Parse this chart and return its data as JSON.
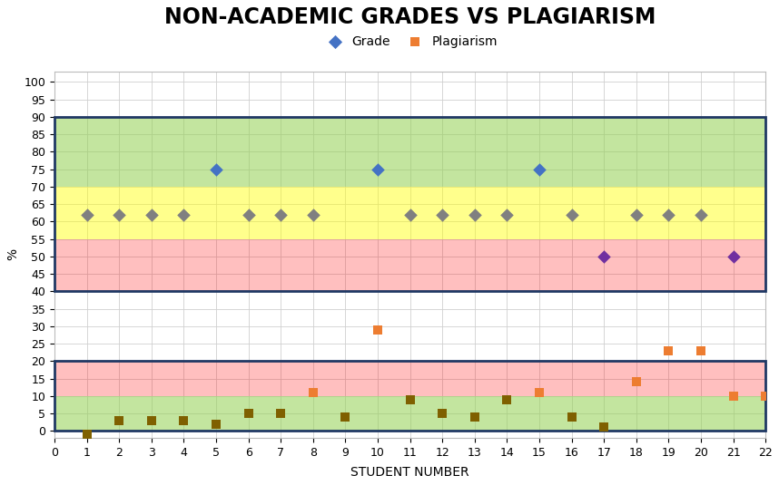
{
  "title": "NON-ACADEMIC GRADES VS PLAGIARISM",
  "xlabel": "STUDENT NUMBER",
  "ylabel": "%",
  "grade_x": [
    1,
    2,
    3,
    4,
    5,
    6,
    7,
    8,
    10,
    11,
    12,
    13,
    14,
    15,
    16,
    17,
    18,
    19,
    20,
    21
  ],
  "grade_y": [
    62,
    62,
    62,
    62,
    75,
    62,
    62,
    62,
    75,
    62,
    62,
    62,
    62,
    75,
    62,
    50,
    62,
    62,
    62,
    50
  ],
  "plagiarism_x": [
    1,
    2,
    3,
    4,
    5,
    6,
    7,
    8,
    9,
    10,
    11,
    12,
    13,
    14,
    15,
    16,
    17,
    18,
    19,
    20,
    21,
    22
  ],
  "plagiarism_y": [
    -1,
    3,
    3,
    3,
    2,
    5,
    5,
    11,
    4,
    29,
    9,
    5,
    4,
    9,
    11,
    4,
    1,
    14,
    23,
    23,
    10,
    10
  ],
  "grade_color_high": "#4472C4",
  "grade_color_mid": "#808080",
  "grade_color_low": "#7030A0",
  "plagiarism_color_high": "#ED7D31",
  "plagiarism_color_low": "#7F6000",
  "zone_green_color": "#92D050",
  "zone_green_alpha": 0.55,
  "zone_yellow_color": "#FFFF00",
  "zone_yellow_alpha": 0.45,
  "zone_red_color": "#FF0000",
  "zone_red_alpha": 0.25,
  "border_color": "#1F3864",
  "border_lw": 2.0,
  "xlim": [
    0,
    22
  ],
  "ylim": [
    -2,
    103
  ],
  "yticks": [
    0,
    5,
    10,
    15,
    20,
    25,
    30,
    35,
    40,
    45,
    50,
    55,
    60,
    65,
    70,
    75,
    80,
    85,
    90,
    95,
    100
  ],
  "xticks": [
    0,
    1,
    2,
    3,
    4,
    5,
    6,
    7,
    8,
    9,
    10,
    11,
    12,
    13,
    14,
    15,
    16,
    17,
    18,
    19,
    20,
    21,
    22
  ],
  "grid_color": "#D0D0D0",
  "grid_lw": 0.6,
  "title_fontsize": 17,
  "axis_label_fontsize": 10,
  "tick_fontsize": 9,
  "legend_fontsize": 10,
  "grade_marker_size": 55,
  "plag_marker_size": 45,
  "legend_marker_size": 60,
  "grade_threshold_high": 70,
  "grade_threshold_mid": 55,
  "plag_threshold": 10
}
